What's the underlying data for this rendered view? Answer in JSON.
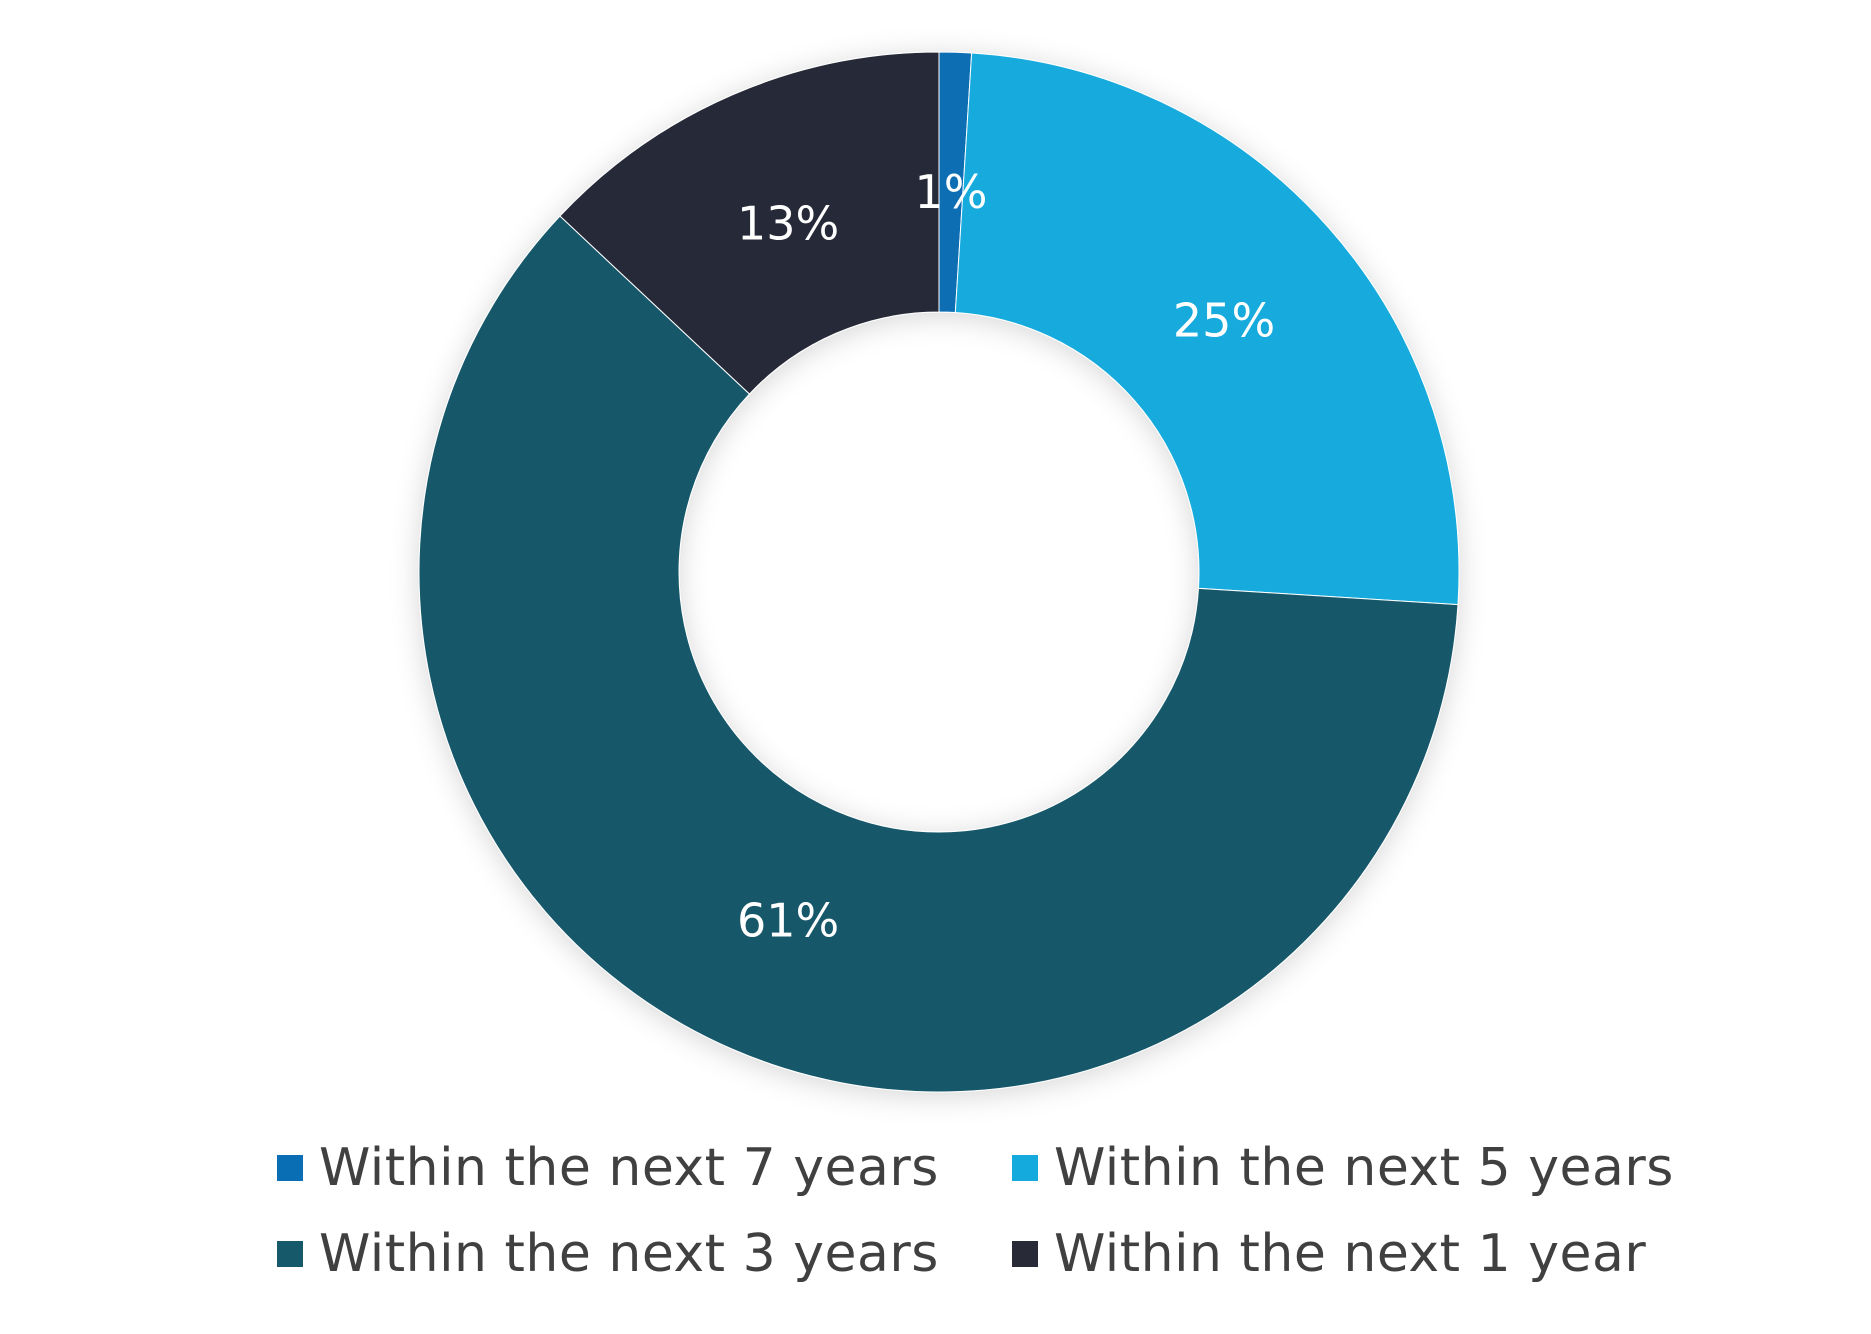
{
  "chart_data": {
    "type": "pie",
    "variant": "donut",
    "title": "",
    "labels": [
      "Within the next 7 years",
      "Within the next 5 years",
      "Within the next 3 years",
      "Within the next 1 year"
    ],
    "values": [
      1,
      25,
      61,
      13
    ],
    "value_labels": [
      "1%",
      "25%",
      "61%",
      "13%"
    ],
    "colors": [
      "#0a6eb4",
      "#14aadd",
      "#16596b",
      "#282a37"
    ],
    "start_angle": "12 o'clock",
    "direction": "clockwise",
    "legend_position": "bottom",
    "legend": [
      {
        "label": "Within the next 7 years",
        "color": "#0a6eb4"
      },
      {
        "label": "Within the next 5 years",
        "color": "#14aadd"
      },
      {
        "label": "Within the next 3 years",
        "color": "#16596b"
      },
      {
        "label": "Within the next 1 year",
        "color": "#282a37"
      }
    ]
  }
}
